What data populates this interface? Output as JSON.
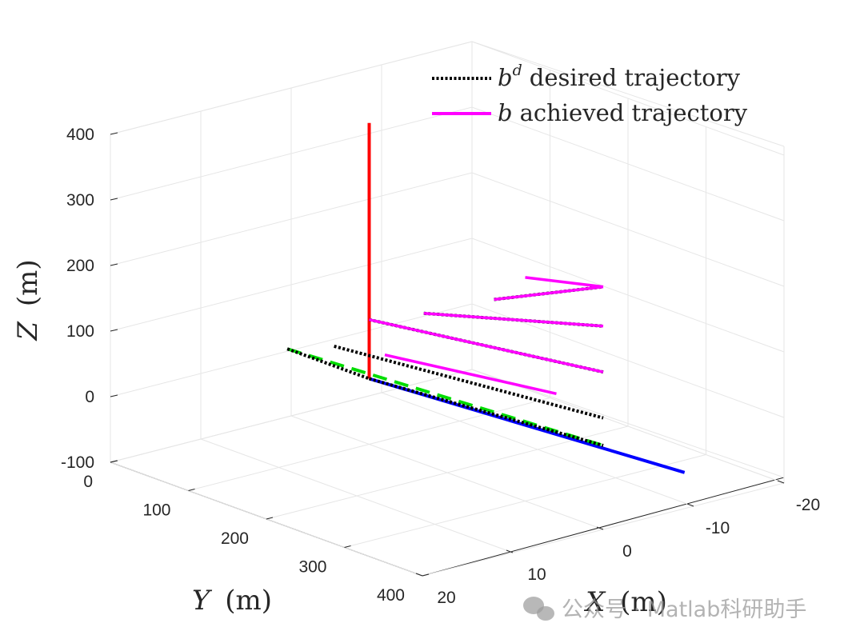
{
  "chart_data": {
    "type": "line3d",
    "title": "",
    "axes": {
      "x": {
        "label_var": "X",
        "label_unit": "(m)",
        "lim": [
          20,
          -20
        ],
        "ticks": [
          20,
          10,
          0,
          -10,
          -20
        ]
      },
      "y": {
        "label_var": "Y",
        "label_unit": "(m)",
        "lim": [
          0,
          400
        ],
        "ticks": [
          0,
          100,
          200,
          300,
          400
        ]
      },
      "z": {
        "label_var": "Z",
        "label_unit": "(m)",
        "lim": [
          -100,
          400
        ],
        "ticks": [
          -100,
          0,
          100,
          200,
          300,
          400
        ]
      }
    },
    "grid": true,
    "legend": {
      "placement": "top-right",
      "entries": [
        {
          "symbol": "b",
          "superscript": "d",
          "text": "desired trajectory",
          "style": "dotted",
          "color": "#000000"
        },
        {
          "symbol": "b",
          "superscript": "",
          "text": "achieved trajectory",
          "style": "solid",
          "color": "#ff00ff"
        }
      ]
    },
    "frame_axes": [
      {
        "name": "z-axis",
        "color": "#ff0000",
        "from": [
          0,
          100,
          0
        ],
        "to": [
          0,
          100,
          390
        ]
      },
      {
        "name": "x-axis",
        "color": "#0000ff",
        "from": [
          0,
          100,
          0
        ],
        "to": [
          -9,
          400,
          -45
        ]
      },
      {
        "name": "y-axis",
        "color": "#00dd00",
        "style": "dashed",
        "from": [
          0,
          -5,
          0
        ],
        "to": [
          0,
          400,
          28
        ]
      }
    ],
    "series": [
      {
        "name": "desired",
        "color": "#000000",
        "style": "dotted",
        "segments": [
          {
            "from": [
              0,
              -5,
              0
            ],
            "to": [
              0,
              100,
              0
            ]
          },
          {
            "from": [
              0,
              100,
              0
            ],
            "to": [
              0,
              400,
              28
            ]
          },
          {
            "from": [
              0,
              55,
              30
            ],
            "to": [
              0,
              400,
              70
            ]
          },
          {
            "from": [
              0,
              100,
              90
            ],
            "to": [
              0,
              400,
              140
            ]
          },
          {
            "from": [
              0,
              170,
              130
            ],
            "to": [
              0,
              400,
              210
            ]
          },
          {
            "from": [
              0,
              260,
              190
            ],
            "to": [
              0,
              400,
              270
            ]
          }
        ]
      },
      {
        "name": "achieved",
        "color": "#ff00ff",
        "style": "solid",
        "segments": [
          {
            "from": [
              0,
              120,
              45
            ],
            "to": [
              0,
              340,
              81
            ]
          },
          {
            "from": [
              0,
              100,
              90
            ],
            "to": [
              0,
              400,
              140
            ]
          },
          {
            "from": [
              0,
              170,
              130
            ],
            "to": [
              0,
              400,
              210
            ]
          },
          {
            "from": [
              0,
              260,
              190
            ],
            "to": [
              0,
              400,
              270
            ]
          },
          {
            "from": [
              0,
              300,
              241
            ],
            "to": [
              0,
              400,
              270
            ]
          }
        ]
      }
    ]
  },
  "watermark": {
    "text": "公众号 · Matlab科研助手"
  }
}
